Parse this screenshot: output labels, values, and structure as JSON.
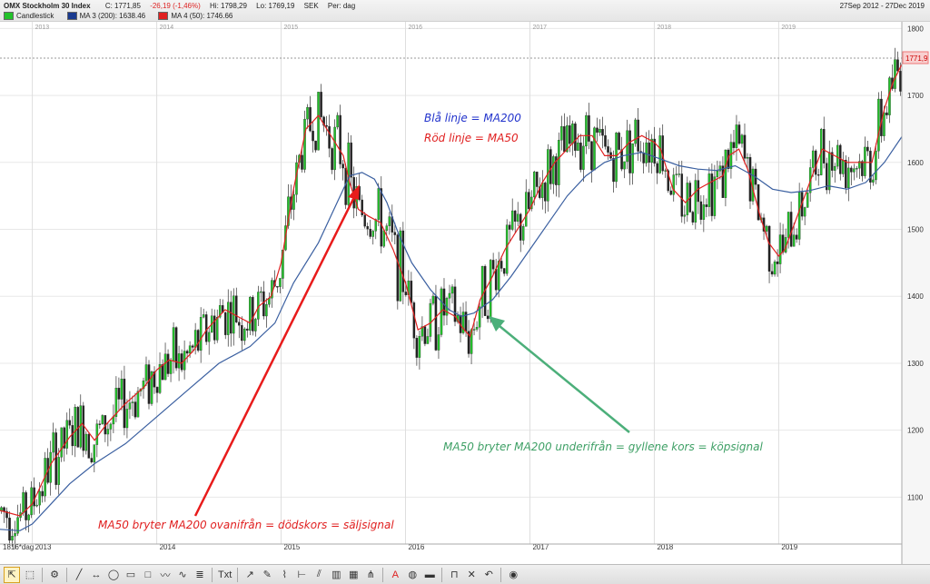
{
  "header": {
    "title": "OMX Stockholm 30 Index",
    "close": "C: 1771,85",
    "change": "-26,19 (-1,46%)",
    "high": "Hi: 1798,29",
    "low": "Lo: 1769,19",
    "currency": "SEK",
    "period": "Per: dag",
    "date_range": "27Sep 2012 - 27Dec 2019",
    "legend": [
      {
        "label": "Candlestick",
        "color": "#22c22a"
      },
      {
        "label": "MA 3 (200): 1638.46",
        "color": "#1a3a8f"
      },
      {
        "label": "MA 4 (50): 1746.66",
        "color": "#e02020"
      }
    ]
  },
  "footer_left": "1816*dag",
  "price_label": "1771,9",
  "annotations": {
    "legend_blue": "Blå linje = MA200",
    "legend_red": "Röd linje = MA50",
    "death_cross": "MA50 bryter MA200 ovanifrån = dödskors = säljsignal",
    "golden_cross": "MA50 bryter MA200 underifrån = gyllene kors = köpsignal"
  },
  "colors": {
    "up": "#22c22a",
    "down": "#222222",
    "ma200": "#3a5fa0",
    "ma50": "#e02020",
    "red_arrow": "#e81b1b",
    "green_arrow": "#4caf7a",
    "blue_text": "#2233cc"
  },
  "toolbar": {
    "tools": [
      "cursor-icon",
      "select-icon",
      "gear-icon",
      "line-icon",
      "hline-icon",
      "ellipse-icon",
      "rect-icon",
      "square-icon",
      "zigzag-icon",
      "wave-icon",
      "fib-icon",
      "text-icon",
      "arrow-icon",
      "pen-icon",
      "brush-icon",
      "ruler-icon",
      "parallel-icon",
      "bars-icon",
      "grid-icon",
      "pitchfork-icon",
      "color-icon",
      "fill-icon",
      "linewidth-icon",
      "magnet-icon",
      "delete-icon",
      "undo-icon",
      "eye-icon"
    ],
    "text_tool_label": "Txt"
  },
  "chart_data": {
    "type": "candlestick",
    "title": "OMX Stockholm 30 Index",
    "ylabel": "",
    "y_ticks": [
      1100,
      1200,
      1300,
      1400,
      1500,
      1600,
      1700,
      1800
    ],
    "ylim": [
      1030,
      1810
    ],
    "x_ticks": [
      "2013",
      "2014",
      "2015",
      "2016",
      "2017",
      "2018",
      "2019"
    ],
    "xlim_years": [
      2012.74,
      2019.99
    ],
    "grid": true,
    "last_price": 1771.9,
    "series": [
      {
        "name": "MA 4 (50): 1746.66",
        "values": [
          [
            2012.74,
            1080
          ],
          [
            2012.9,
            1072
          ],
          [
            2013.0,
            1090
          ],
          [
            2013.15,
            1150
          ],
          [
            2013.3,
            1190
          ],
          [
            2013.4,
            1210
          ],
          [
            2013.5,
            1185
          ],
          [
            2013.6,
            1210
          ],
          [
            2013.75,
            1240
          ],
          [
            2013.9,
            1265
          ],
          [
            2014.0,
            1290
          ],
          [
            2014.1,
            1305
          ],
          [
            2014.2,
            1300
          ],
          [
            2014.3,
            1320
          ],
          [
            2014.4,
            1350
          ],
          [
            2014.55,
            1380
          ],
          [
            2014.65,
            1370
          ],
          [
            2014.75,
            1360
          ],
          [
            2014.82,
            1385
          ],
          [
            2014.92,
            1400
          ],
          [
            2015.0,
            1450
          ],
          [
            2015.1,
            1560
          ],
          [
            2015.2,
            1650
          ],
          [
            2015.3,
            1670
          ],
          [
            2015.4,
            1640
          ],
          [
            2015.5,
            1610
          ],
          [
            2015.55,
            1570
          ],
          [
            2015.62,
            1530
          ],
          [
            2015.7,
            1520
          ],
          [
            2015.8,
            1510
          ],
          [
            2015.9,
            1470
          ],
          [
            2016.0,
            1420
          ],
          [
            2016.1,
            1350
          ],
          [
            2016.2,
            1360
          ],
          [
            2016.3,
            1380
          ],
          [
            2016.4,
            1370
          ],
          [
            2016.45,
            1355
          ],
          [
            2016.52,
            1340
          ],
          [
            2016.6,
            1395
          ],
          [
            2016.7,
            1430
          ],
          [
            2016.8,
            1470
          ],
          [
            2016.9,
            1500
          ],
          [
            2017.0,
            1530
          ],
          [
            2017.1,
            1570
          ],
          [
            2017.2,
            1600
          ],
          [
            2017.3,
            1620
          ],
          [
            2017.4,
            1640
          ],
          [
            2017.5,
            1640
          ],
          [
            2017.6,
            1610
          ],
          [
            2017.7,
            1610
          ],
          [
            2017.8,
            1630
          ],
          [
            2017.9,
            1640
          ],
          [
            2018.0,
            1630
          ],
          [
            2018.05,
            1620
          ],
          [
            2018.15,
            1560
          ],
          [
            2018.25,
            1540
          ],
          [
            2018.35,
            1560
          ],
          [
            2018.45,
            1570
          ],
          [
            2018.55,
            1580
          ],
          [
            2018.6,
            1610
          ],
          [
            2018.68,
            1620
          ],
          [
            2018.75,
            1590
          ],
          [
            2018.85,
            1520
          ],
          [
            2018.92,
            1480
          ],
          [
            2019.0,
            1460
          ],
          [
            2019.05,
            1470
          ],
          [
            2019.15,
            1520
          ],
          [
            2019.25,
            1570
          ],
          [
            2019.35,
            1620
          ],
          [
            2019.45,
            1610
          ],
          [
            2019.55,
            1600
          ],
          [
            2019.65,
            1600
          ],
          [
            2019.75,
            1600
          ],
          [
            2019.85,
            1680
          ],
          [
            2019.92,
            1720
          ],
          [
            2019.99,
            1746.66
          ]
        ]
      },
      {
        "name": "MA 3 (200): 1638.46",
        "values": [
          [
            2012.74,
            1052
          ],
          [
            2012.9,
            1050
          ],
          [
            2013.0,
            1060
          ],
          [
            2013.15,
            1090
          ],
          [
            2013.3,
            1120
          ],
          [
            2013.5,
            1150
          ],
          [
            2013.75,
            1180
          ],
          [
            2014.0,
            1220
          ],
          [
            2014.25,
            1260
          ],
          [
            2014.5,
            1300
          ],
          [
            2014.75,
            1325
          ],
          [
            2014.95,
            1360
          ],
          [
            2015.1,
            1420
          ],
          [
            2015.3,
            1480
          ],
          [
            2015.45,
            1540
          ],
          [
            2015.55,
            1580
          ],
          [
            2015.65,
            1585
          ],
          [
            2015.75,
            1575
          ],
          [
            2015.85,
            1540
          ],
          [
            2015.95,
            1490
          ],
          [
            2016.05,
            1450
          ],
          [
            2016.2,
            1410
          ],
          [
            2016.35,
            1380
          ],
          [
            2016.45,
            1370
          ],
          [
            2016.55,
            1375
          ],
          [
            2016.7,
            1395
          ],
          [
            2016.85,
            1430
          ],
          [
            2017.0,
            1470
          ],
          [
            2017.15,
            1510
          ],
          [
            2017.3,
            1550
          ],
          [
            2017.45,
            1580
          ],
          [
            2017.6,
            1600
          ],
          [
            2017.75,
            1610
          ],
          [
            2017.9,
            1615
          ],
          [
            2018.05,
            1605
          ],
          [
            2018.2,
            1595
          ],
          [
            2018.35,
            1590
          ],
          [
            2018.5,
            1588
          ],
          [
            2018.65,
            1595
          ],
          [
            2018.8,
            1580
          ],
          [
            2018.95,
            1560
          ],
          [
            2019.1,
            1555
          ],
          [
            2019.25,
            1558
          ],
          [
            2019.4,
            1565
          ],
          [
            2019.55,
            1560
          ],
          [
            2019.7,
            1570
          ],
          [
            2019.85,
            1600
          ],
          [
            2019.99,
            1638.46
          ]
        ]
      }
    ]
  }
}
